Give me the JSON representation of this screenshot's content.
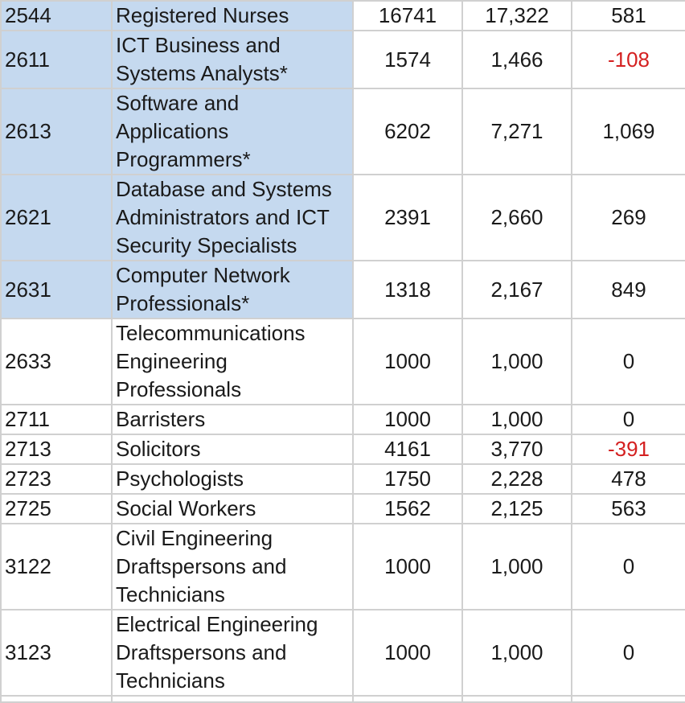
{
  "colors": {
    "highlight": "#c5d9ef",
    "negative": "#d42020",
    "grid": "#d0d0d0"
  },
  "rows": [
    {
      "code": "2544",
      "name_lines": [
        "Registered Nurses"
      ],
      "v1": "16741",
      "v2": "17,322",
      "diff": "581",
      "highlight": true,
      "negative": false
    },
    {
      "code": "2611",
      "name_lines": [
        "ICT Business and",
        "Systems Analysts*"
      ],
      "v1": "1574",
      "v2": "1,466",
      "diff": "-108",
      "highlight": true,
      "negative": true
    },
    {
      "code": "2613",
      "name_lines": [
        "Software and",
        "Applications",
        "Programmers*"
      ],
      "v1": "6202",
      "v2": "7,271",
      "diff": "1,069",
      "highlight": true,
      "negative": false
    },
    {
      "code": "2621",
      "name_lines": [
        "Database and Systems",
        "Administrators and ICT",
        "Security Specialists"
      ],
      "v1": "2391",
      "v2": "2,660",
      "diff": "269",
      "highlight": true,
      "negative": false
    },
    {
      "code": "2631",
      "name_lines": [
        "Computer Network",
        "Professionals*"
      ],
      "v1": "1318",
      "v2": "2,167",
      "diff": "849",
      "highlight": true,
      "negative": false
    },
    {
      "code": "2633",
      "name_lines": [
        "Telecommunications",
        "Engineering",
        "Professionals"
      ],
      "v1": "1000",
      "v2": "1,000",
      "diff": "0",
      "highlight": false,
      "negative": false
    },
    {
      "code": "2711",
      "name_lines": [
        "Barristers"
      ],
      "v1": "1000",
      "v2": "1,000",
      "diff": "0",
      "highlight": false,
      "negative": false
    },
    {
      "code": "2713",
      "name_lines": [
        "Solicitors"
      ],
      "v1": "4161",
      "v2": "3,770",
      "diff": "-391",
      "highlight": false,
      "negative": true
    },
    {
      "code": "2723",
      "name_lines": [
        "Psychologists"
      ],
      "v1": "1750",
      "v2": "2,228",
      "diff": "478",
      "highlight": false,
      "negative": false
    },
    {
      "code": "2725",
      "name_lines": [
        "Social Workers"
      ],
      "v1": "1562",
      "v2": "2,125",
      "diff": "563",
      "highlight": false,
      "negative": false
    },
    {
      "code": "3122",
      "name_lines": [
        "Civil Engineering",
        "Draftspersons and",
        "Technicians"
      ],
      "v1": "1000",
      "v2": "1,000",
      "diff": "0",
      "highlight": false,
      "negative": false
    },
    {
      "code": "3123",
      "name_lines": [
        "Electrical Engineering",
        "Draftspersons and",
        "Technicians"
      ],
      "v1": "1000",
      "v2": "1,000",
      "diff": "0",
      "highlight": false,
      "negative": false
    }
  ]
}
